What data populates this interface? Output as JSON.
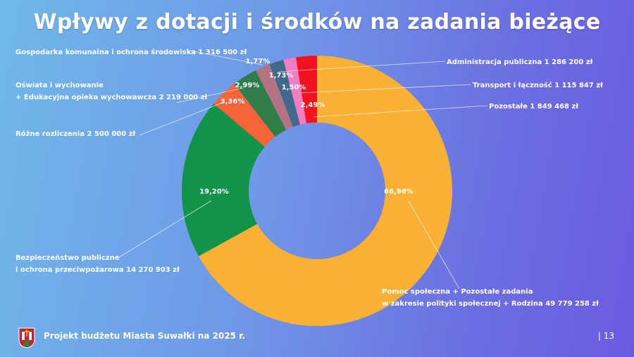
{
  "chart_data": {
    "type": "pie",
    "donut": true,
    "title": "Wpływy z dotacji i środków na zadania bieżące",
    "slices": [
      {
        "label": "Pomoc społeczna + Pozostałe zadania w zakresie polityki społecznej + Rodzina 49 779 258 zł",
        "line1": "Pomoc społeczna + Pozostałe zadania",
        "line2": "w zakresie polityki społecznej + Rodzina 49 779 258 zł",
        "value": 49779258,
        "percent_label": "66,96%",
        "percent": 66.96,
        "color": "#f8b133"
      },
      {
        "label": "Bezpieczeństwo publiczne i ochrona przeciwpożarowa 14 270 903 zł",
        "line1": "Bezpieczeństwo publiczne",
        "line2": "i ochrona przeciwpożarowa 14 270 903 zł",
        "value": 14270903,
        "percent_label": "19,20%",
        "percent": 19.2,
        "color": "#12934a"
      },
      {
        "label": "Różne rozliczenia 2 500 000 zł",
        "line1": "Różne rozliczenia 2 500 000 zł",
        "value": 2500000,
        "percent_label": "3,36%",
        "percent": 3.36,
        "color": "#f7643a"
      },
      {
        "label": "Oświata i wychowanie + Edukacyjna opieka wychowawcza 2 219 000 zł",
        "line1": "Oświata i wychowanie",
        "line2": "+ Edukacyjna opieka wychowawcza 2 219 000 zł",
        "value": 2219000,
        "percent_label": "2,99%",
        "percent": 2.99,
        "color": "#2f7d4a"
      },
      {
        "label": "Gospodarka komunalna i ochrona środowiska 1 316 500 zł",
        "line1": "Gospodarka komunalna i ochrona środowiska 1 316 500 zł",
        "value": 1316500,
        "percent_label": "1,77%",
        "percent": 1.77,
        "color": "#b57283"
      },
      {
        "label": "Administracja publiczna 1 286 200 zł",
        "line1": "Administracja publiczna 1 286 200 zł",
        "value": 1286200,
        "percent_label": "1,73%",
        "percent": 1.73,
        "color": "#3f6a8c"
      },
      {
        "label": "Transport i łączność 1 115 847 zł",
        "line1": "Transport i łączność 1 115 847 zł",
        "value": 1115847,
        "percent_label": "1,50%",
        "percent": 1.5,
        "color": "#f47cc0"
      },
      {
        "label": "Pozostałe 1 849 468 zł",
        "line1": "Pozostałe 1 849 468 zł",
        "value": 1849468,
        "percent_label": "2,49%",
        "percent": 2.49,
        "color": "#f2131e"
      }
    ],
    "order": "counterclockwise from top starting with Pomoc społeczna going clockwise",
    "legend": "none; callout labels"
  },
  "footer": {
    "text": "Projekt budżetu Miasta Suwałki na 2025 r.",
    "page": "| 13"
  }
}
